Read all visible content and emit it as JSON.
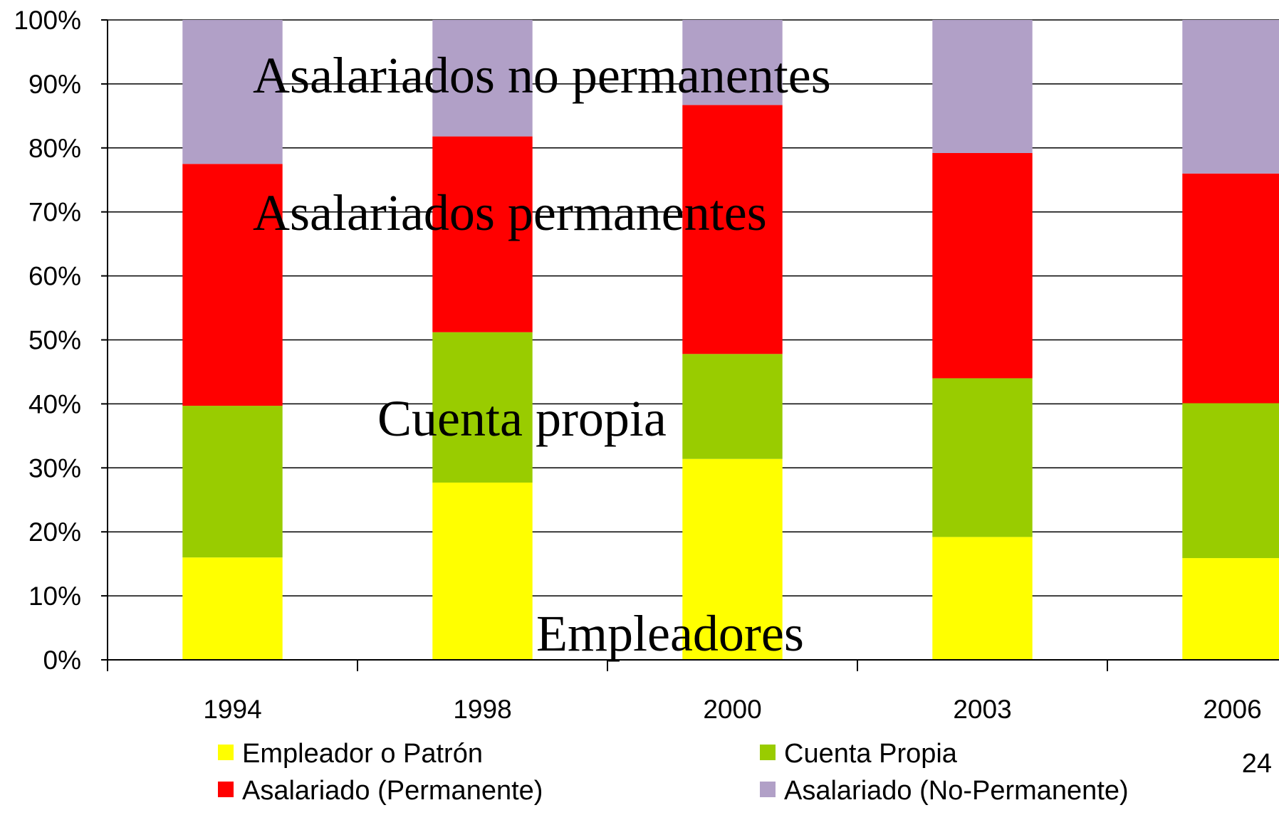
{
  "chart_data": {
    "type": "stacked_bar",
    "categories": [
      "1994",
      "1998",
      "2000",
      "2003",
      "2006"
    ],
    "series": [
      {
        "name": "Empleador o Patrón",
        "color": "#ffff00",
        "values": [
          16.0,
          27.7,
          31.4,
          19.2,
          15.9
        ]
      },
      {
        "name": "Cuenta Propia",
        "color": "#99cc00",
        "values": [
          23.7,
          23.5,
          16.4,
          24.8,
          24.2
        ]
      },
      {
        "name": "Asalariado (Permanente)",
        "color": "#ff0000",
        "values": [
          37.8,
          30.6,
          38.9,
          35.2,
          35.9
        ]
      },
      {
        "name": "Asalariado (No-Permanente)",
        "color": "#b1a0c7",
        "values": [
          22.5,
          18.2,
          13.3,
          20.8,
          24.0
        ]
      }
    ],
    "ylim": [
      0,
      100
    ],
    "yticks": [
      {
        "value": 0,
        "label": "0%"
      },
      {
        "value": 10,
        "label": "10%"
      },
      {
        "value": 20,
        "label": "20%"
      },
      {
        "value": 30,
        "label": "30%"
      },
      {
        "value": 40,
        "label": "40%"
      },
      {
        "value": 50,
        "label": "50%"
      },
      {
        "value": 60,
        "label": "60%"
      },
      {
        "value": 70,
        "label": "70%"
      },
      {
        "value": 80,
        "label": "80%"
      },
      {
        "value": 90,
        "label": "90%"
      },
      {
        "value": 100,
        "label": "100%"
      }
    ],
    "grid": true,
    "annotations": [
      "Asalariados no permanentes",
      "Asalariados permanentes",
      "Cuenta propia",
      "Empleadores"
    ],
    "page_number": "24"
  }
}
